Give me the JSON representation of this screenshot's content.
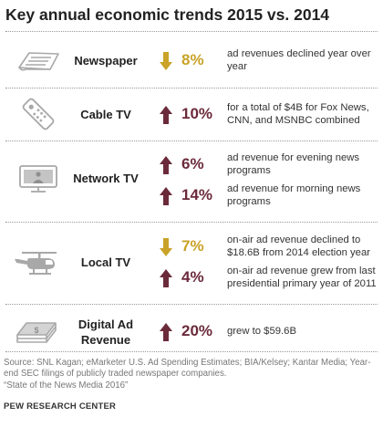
{
  "title": "Key annual economic trends 2015 vs. 2014",
  "colors": {
    "decline": "#c9a227",
    "increase": "#6b2a3a",
    "icon_gray": "#b0b0b0"
  },
  "rows": [
    {
      "category": "Newspaper",
      "icon": "newspaper-icon",
      "items": [
        {
          "direction": "down",
          "value": "8%",
          "text": "ad revenues declined year over year"
        }
      ]
    },
    {
      "category": "Cable TV",
      "icon": "remote-control-icon",
      "items": [
        {
          "direction": "up",
          "value": "10%",
          "text": "for a total of $4B for Fox News, CNN, and MSNBC combined"
        }
      ]
    },
    {
      "category": "Network TV",
      "icon": "tv-monitor-icon",
      "items": [
        {
          "direction": "up",
          "value": "6%",
          "text": "ad revenue for evening news programs"
        },
        {
          "direction": "up",
          "value": "14%",
          "text": "ad revenue for morning news programs"
        }
      ]
    },
    {
      "category": "Local TV",
      "icon": "helicopter-icon",
      "items": [
        {
          "direction": "down",
          "value": "7%",
          "text": "on-air ad revenue declined to $18.6B from 2014 election year"
        },
        {
          "direction": "up",
          "value": "4%",
          "text": "on-air ad revenue grew from last presidential primary year of 2011"
        }
      ]
    },
    {
      "category": "Digital Ad Revenue",
      "icon": "money-stack-icon",
      "items": [
        {
          "direction": "up",
          "value": "20%",
          "text": "grew to $59.6B"
        }
      ]
    }
  ],
  "footer": {
    "source": "Source: SNL Kagan; eMarketer U.S. Ad Spending Estimates; BIA/Kelsey; Kantar Media; Year-end SEC filings of publicly traded newspaper companies.",
    "report": "“State of the News Media 2016”",
    "brand": "PEW RESEARCH CENTER"
  }
}
